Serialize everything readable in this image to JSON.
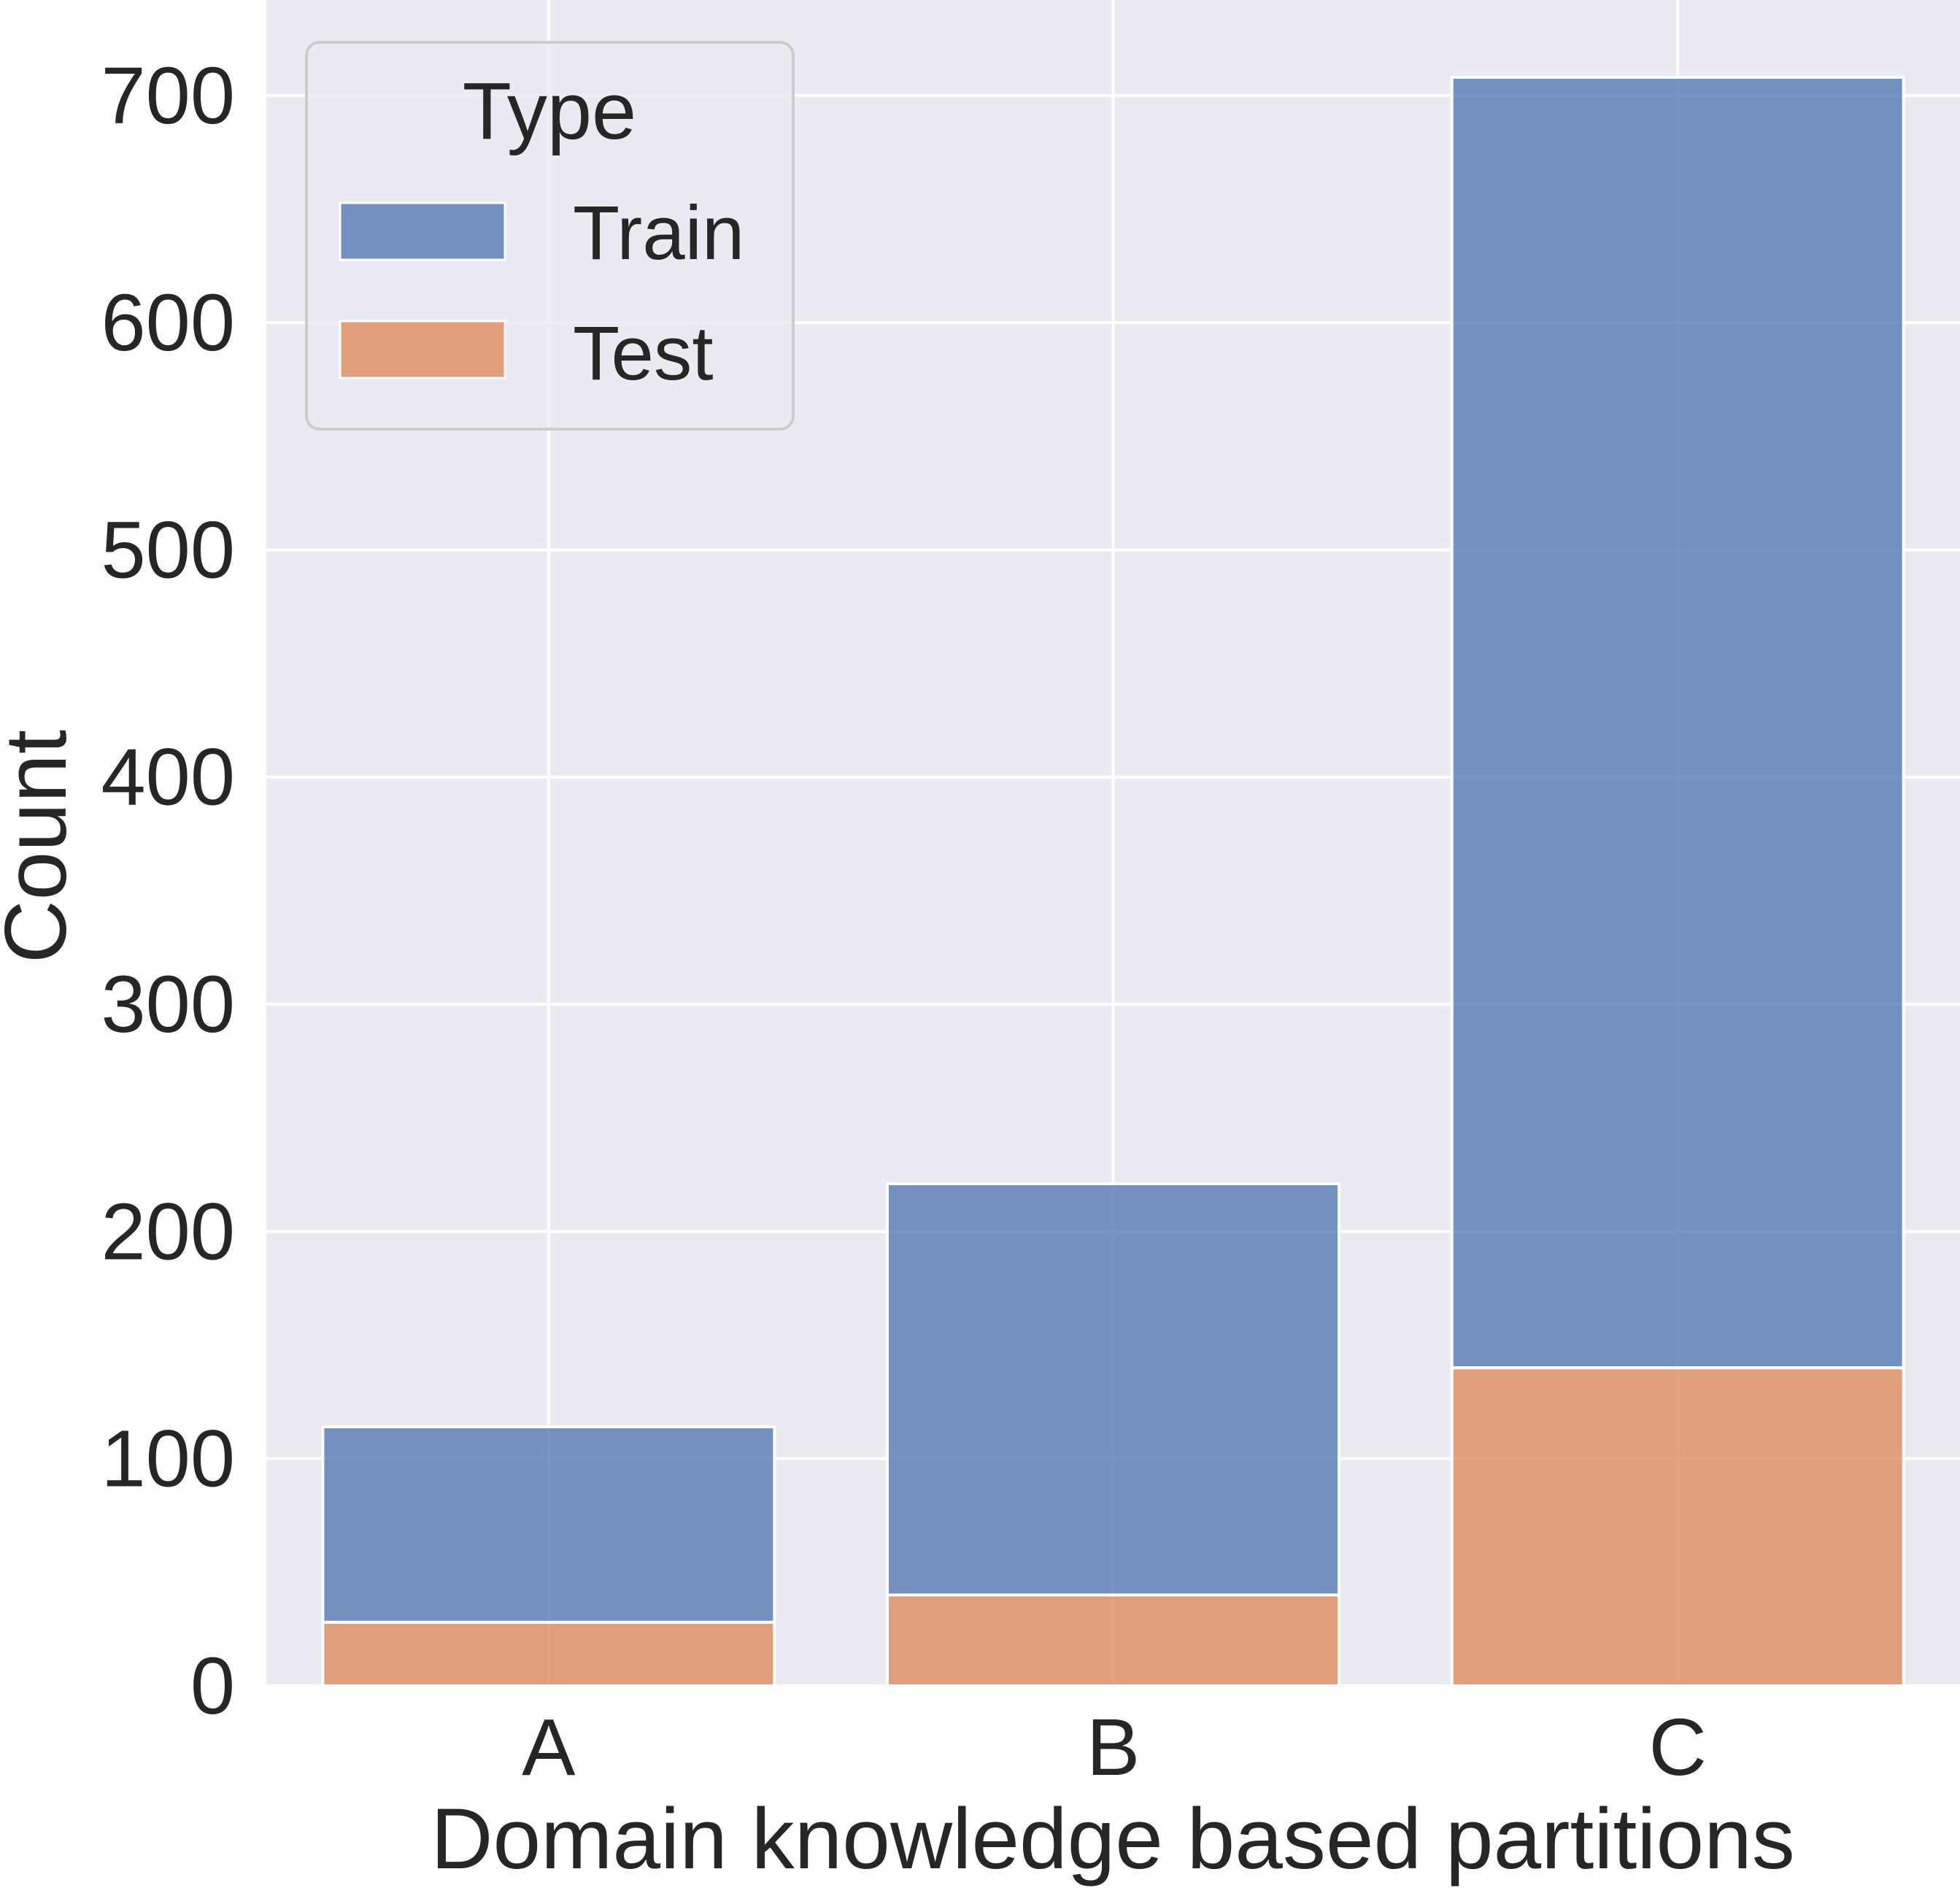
{
  "chart_data": {
    "type": "bar",
    "stacked": true,
    "categories": [
      "A",
      "B",
      "C"
    ],
    "series": [
      {
        "name": "Test",
        "values": [
          28,
          40,
          140
        ],
        "color": "#dd8452"
      },
      {
        "name": "Train",
        "values": [
          86,
          181,
          568
        ],
        "color": "#4c72b0"
      }
    ],
    "totals": [
      114,
      221,
      708
    ],
    "xlabel": "Domain knowledge based partitions",
    "ylabel": "Count",
    "ylim": [
      0,
      742
    ],
    "yticks": [
      0,
      100,
      200,
      300,
      400,
      500,
      600,
      700
    ],
    "grid": true,
    "background_color": "#eaeaf2",
    "legend": {
      "title": "Type",
      "position": "top-left",
      "entries": [
        {
          "label": "Train",
          "color": "#4c72b0"
        },
        {
          "label": "Test",
          "color": "#dd8452"
        }
      ]
    }
  }
}
